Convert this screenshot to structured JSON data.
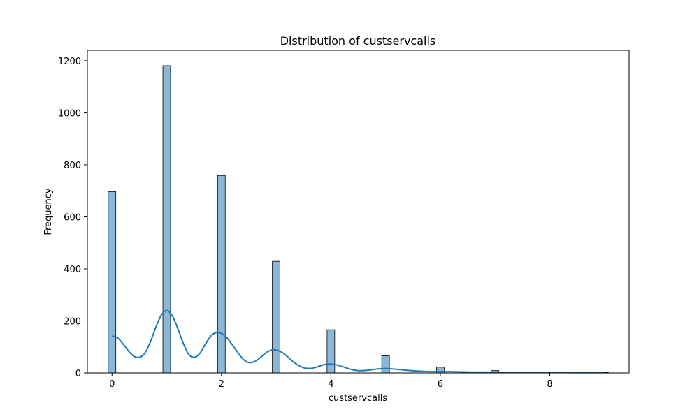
{
  "chart_data": {
    "type": "bar",
    "title": "Distribution of custservcalls",
    "xlabel": "custservcalls",
    "ylabel": "Frequency",
    "xlim": [
      -0.45,
      9.45
    ],
    "ylim": [
      0,
      1240
    ],
    "xticks": [
      0,
      2,
      4,
      6,
      8
    ],
    "yticks": [
      0,
      200,
      400,
      600,
      800,
      1000,
      1200
    ],
    "grid": false,
    "bars": [
      {
        "x": 0,
        "value": 697
      },
      {
        "x": 1,
        "value": 1181
      },
      {
        "x": 2,
        "value": 759
      },
      {
        "x": 3,
        "value": 429
      },
      {
        "x": 4,
        "value": 166
      },
      {
        "x": 5,
        "value": 66
      },
      {
        "x": 6,
        "value": 22
      },
      {
        "x": 7,
        "value": 9
      },
      {
        "x": 8,
        "value": 2
      },
      {
        "x": 9,
        "value": 2
      }
    ],
    "kde": {
      "x": [
        0,
        0.1,
        0.2,
        0.3,
        0.4,
        0.5,
        0.6,
        0.7,
        0.8,
        0.9,
        1.0,
        1.1,
        1.2,
        1.3,
        1.4,
        1.5,
        1.6,
        1.7,
        1.8,
        1.9,
        2.0,
        2.1,
        2.2,
        2.3,
        2.4,
        2.5,
        2.6,
        2.7,
        2.8,
        2.9,
        3.0,
        3.1,
        3.2,
        3.3,
        3.4,
        3.5,
        3.6,
        3.7,
        3.8,
        3.9,
        4.0,
        4.1,
        4.2,
        4.3,
        4.4,
        4.5,
        4.6,
        4.7,
        4.8,
        4.9,
        5.0,
        5.2,
        5.4,
        5.6,
        5.8,
        6.0,
        6.2,
        6.4,
        6.6,
        6.8,
        7.0,
        7.5,
        8.0,
        8.5,
        9.0
      ],
      "y": [
        142,
        135,
        112,
        85,
        64,
        60,
        76,
        118,
        175,
        222,
        240,
        220,
        172,
        115,
        72,
        60,
        74,
        108,
        140,
        155,
        152,
        135,
        108,
        78,
        52,
        40,
        43,
        57,
        75,
        87,
        88,
        80,
        64,
        45,
        30,
        20,
        17,
        20,
        27,
        33,
        34,
        31,
        25,
        18,
        12,
        9,
        9,
        11,
        14,
        16,
        17,
        14,
        10,
        7,
        5,
        5,
        5,
        4,
        3,
        3,
        3,
        2,
        2,
        1,
        1
      ]
    },
    "colors": {
      "bar_fill": "#8ab6d8",
      "bar_edge": "#000000",
      "kde_line": "#1f77b4"
    }
  }
}
